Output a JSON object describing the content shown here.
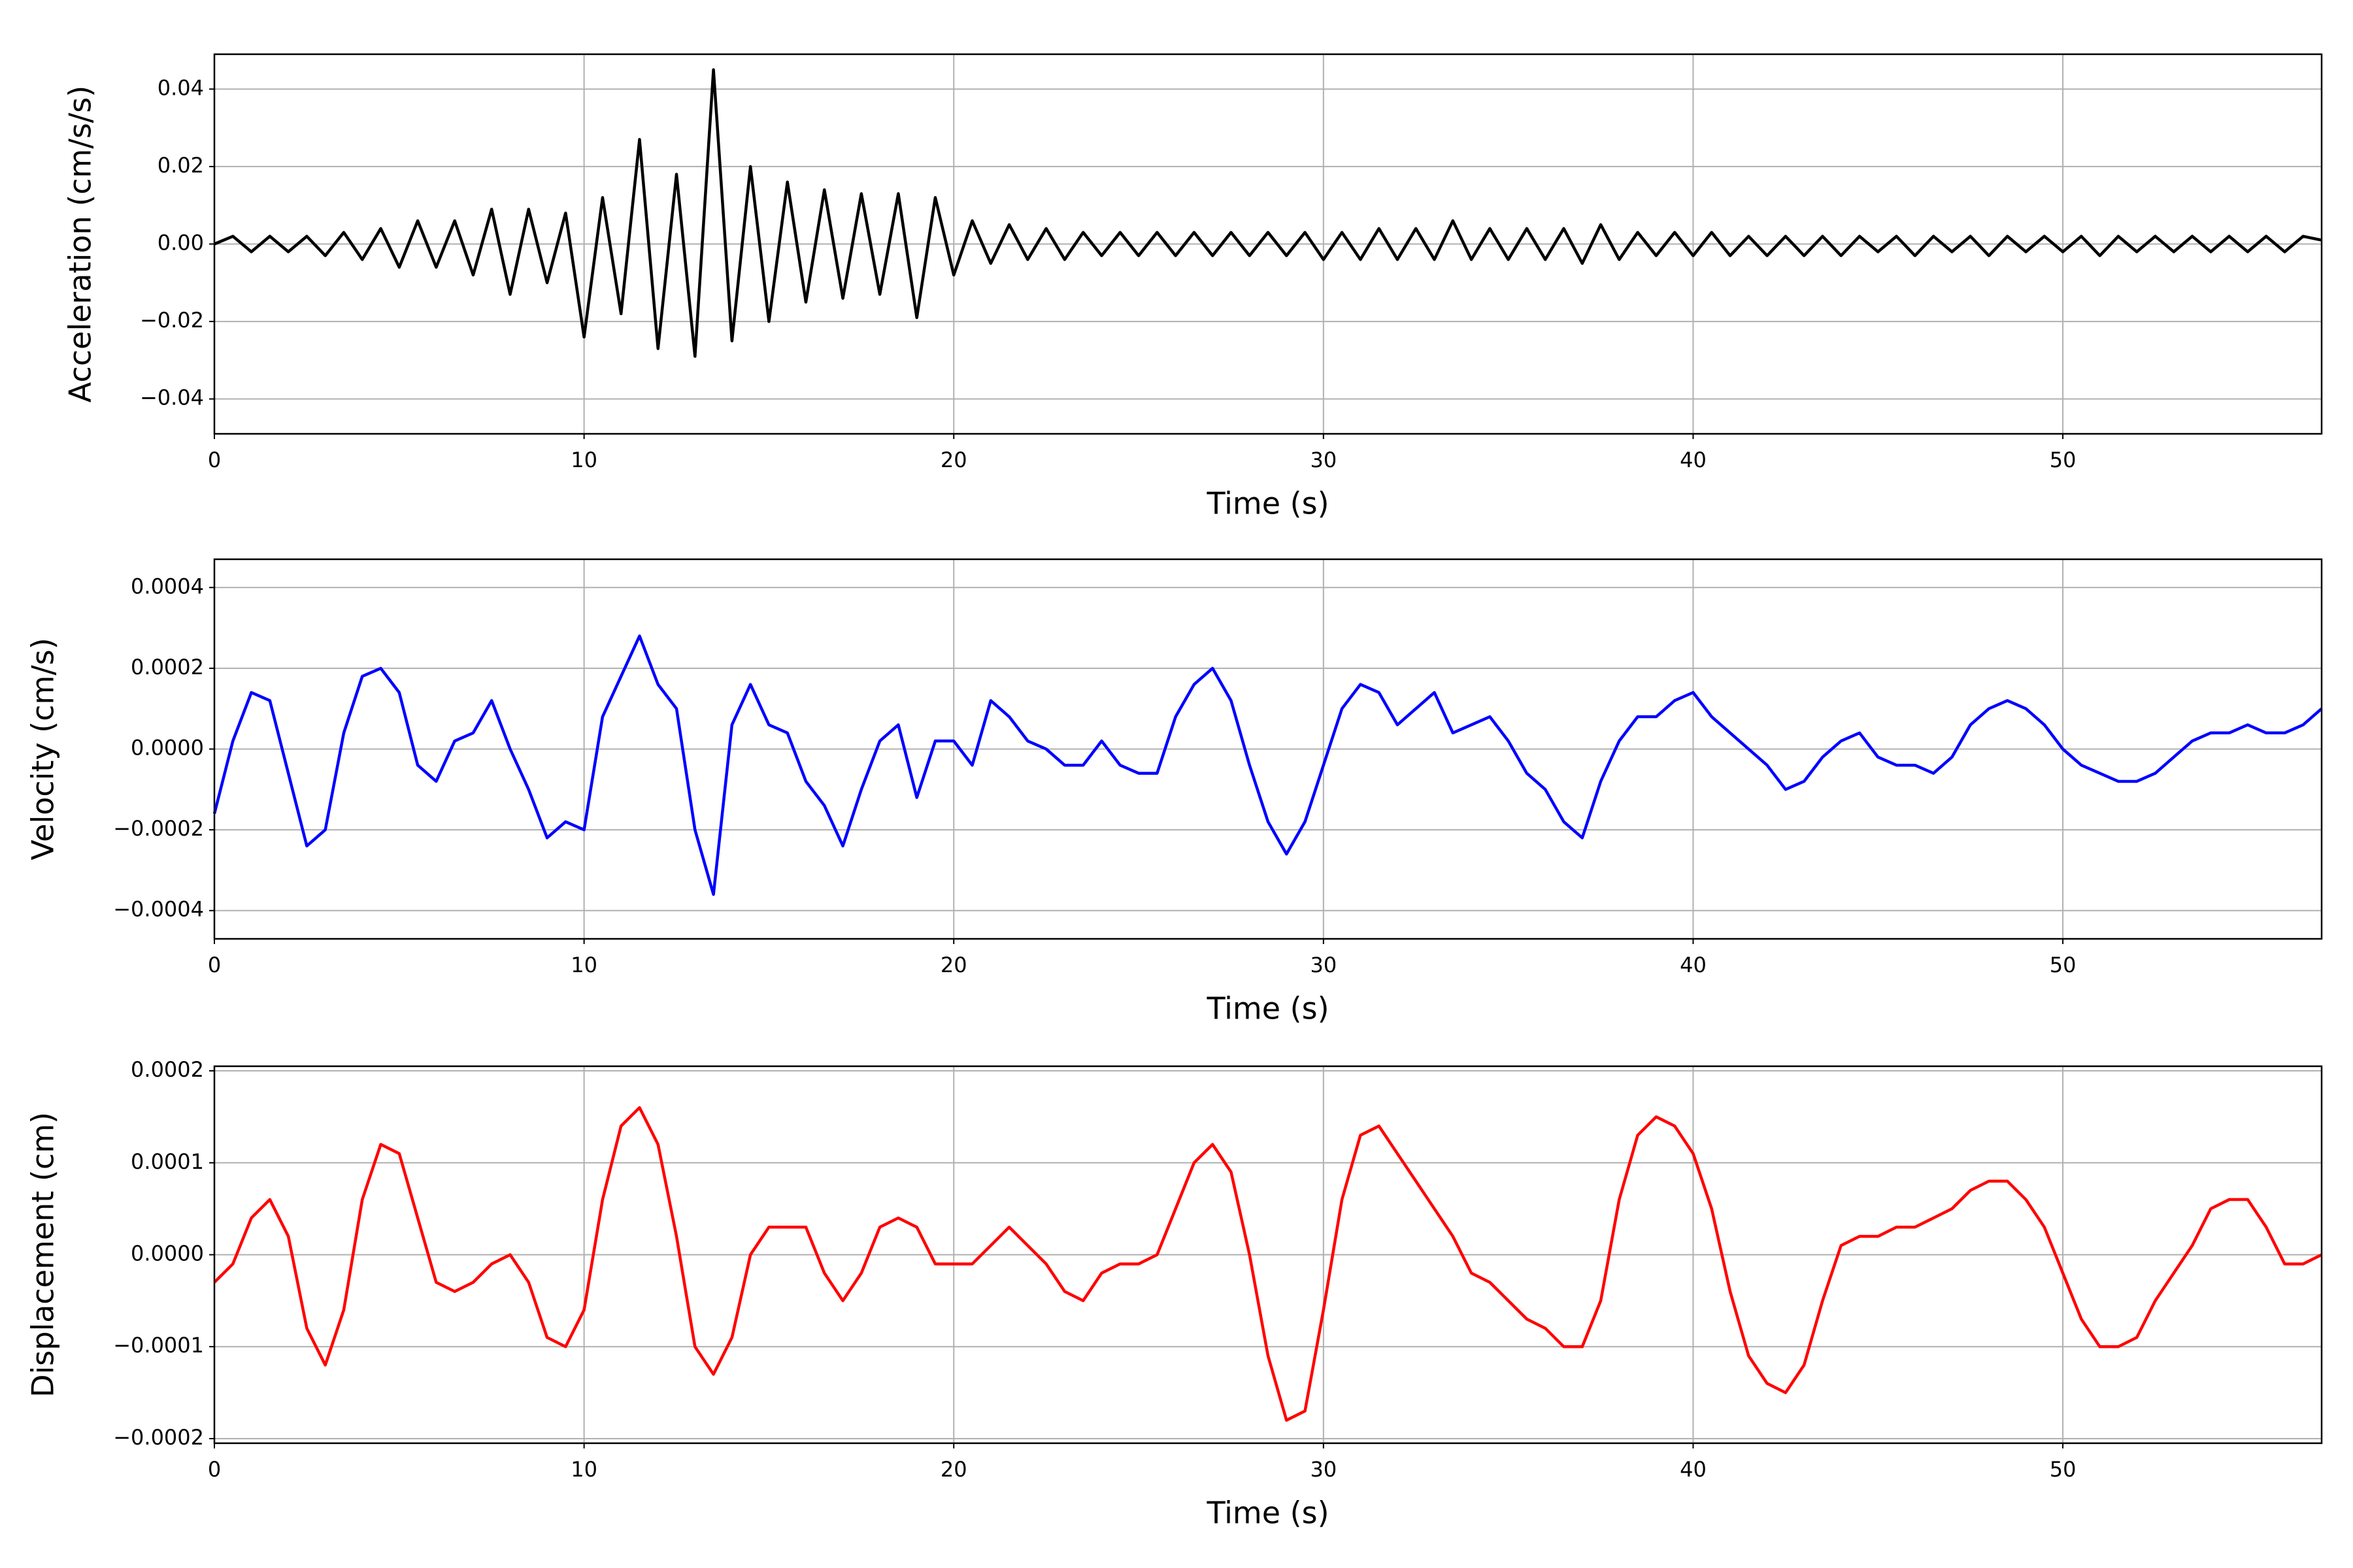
{
  "chart_data": [
    {
      "type": "line",
      "ylabel": "Acceleration (cm/s/s)",
      "xlabel": "Time (s)",
      "color": "#000000",
      "grid": true,
      "xlim": [
        0,
        57
      ],
      "xticks": [
        0,
        10,
        20,
        30,
        40,
        50
      ],
      "ylim": [
        -0.049,
        0.049
      ],
      "yticks": [
        {
          "value": -0.04,
          "label": "−0.04"
        },
        {
          "value": -0.02,
          "label": "−0.02"
        },
        {
          "value": 0,
          "label": "0.00"
        },
        0.02,
        0.04
      ],
      "x": [
        0,
        0.5,
        1,
        1.5,
        2,
        2.5,
        3,
        3.5,
        4,
        4.5,
        5,
        5.5,
        6,
        6.5,
        7,
        7.5,
        8,
        8.5,
        9,
        9.5,
        10,
        10.5,
        11,
        11.5,
        12,
        12.5,
        13,
        13.5,
        14,
        14.5,
        15,
        15.5,
        16,
        16.5,
        17,
        17.5,
        18,
        18.5,
        19,
        19.5,
        20,
        20.5,
        21,
        21.5,
        22,
        22.5,
        23,
        23.5,
        24,
        24.5,
        25,
        25.5,
        26,
        26.5,
        27,
        27.5,
        28,
        28.5,
        29,
        29.5,
        30,
        30.5,
        31,
        31.5,
        32,
        32.5,
        33,
        33.5,
        34,
        34.5,
        35,
        35.5,
        36,
        36.5,
        37,
        37.5,
        38,
        38.5,
        39,
        39.5,
        40,
        40.5,
        41,
        41.5,
        42,
        42.5,
        43,
        43.5,
        44,
        44.5,
        45,
        45.5,
        46,
        46.5,
        47,
        47.5,
        48,
        48.5,
        49,
        49.5,
        50,
        50.5,
        51,
        51.5,
        52,
        52.5,
        53,
        53.5,
        54,
        54.5,
        55,
        55.5,
        56,
        56.5,
        57
      ],
      "values": [
        0,
        0.002,
        -0.002,
        0.002,
        -0.002,
        0.002,
        -0.003,
        0.003,
        -0.004,
        0.004,
        -0.006,
        0.006,
        -0.006,
        0.006,
        -0.008,
        0.009,
        -0.013,
        0.009,
        -0.01,
        0.008,
        -0.024,
        0.012,
        -0.018,
        0.027,
        -0.027,
        0.018,
        -0.029,
        0.045,
        -0.025,
        0.02,
        -0.02,
        0.016,
        -0.015,
        0.014,
        -0.014,
        0.013,
        -0.013,
        0.013,
        -0.019,
        0.012,
        -0.008,
        0.006,
        -0.005,
        0.005,
        -0.004,
        0.004,
        -0.004,
        0.003,
        -0.003,
        0.003,
        -0.003,
        0.003,
        -0.003,
        0.003,
        -0.003,
        0.003,
        -0.003,
        0.003,
        -0.003,
        0.003,
        -0.004,
        0.003,
        -0.004,
        0.004,
        -0.004,
        0.004,
        -0.004,
        0.006,
        -0.004,
        0.004,
        -0.004,
        0.004,
        -0.004,
        0.004,
        -0.005,
        0.005,
        -0.004,
        0.003,
        -0.003,
        0.003,
        -0.003,
        0.003,
        -0.003,
        0.002,
        -0.003,
        0.002,
        -0.003,
        0.002,
        -0.003,
        0.002,
        -0.002,
        0.002,
        -0.003,
        0.002,
        -0.002,
        0.002,
        -0.003,
        0.002,
        -0.002,
        0.002,
        -0.002,
        0.002,
        -0.003,
        0.002,
        -0.002,
        0.002,
        -0.002,
        0.002,
        -0.002,
        0.002,
        -0.002,
        0.002,
        -0.002,
        0.002,
        0.001
      ]
    },
    {
      "type": "line",
      "ylabel": "Velocity (cm/s)",
      "xlabel": "Time (s)",
      "color": "#0000ff",
      "grid": true,
      "xlim": [
        0,
        57
      ],
      "xticks": [
        0,
        10,
        20,
        30,
        40,
        50
      ],
      "ylim": [
        -0.00047,
        0.00047
      ],
      "yticks": [
        {
          "value": -0.0004,
          "label": "−0.0004"
        },
        {
          "value": -0.0002,
          "label": "−0.0002"
        },
        {
          "value": 0,
          "label": "0.0000"
        },
        0.0002,
        0.0004
      ],
      "x": [
        0,
        0.5,
        1,
        1.5,
        2,
        2.5,
        3,
        3.5,
        4,
        4.5,
        5,
        5.5,
        6,
        6.5,
        7,
        7.5,
        8,
        8.5,
        9,
        9.5,
        10,
        10.5,
        11,
        11.5,
        12,
        12.5,
        13,
        13.5,
        14,
        14.5,
        15,
        15.5,
        16,
        16.5,
        17,
        17.5,
        18,
        18.5,
        19,
        19.5,
        20,
        20.5,
        21,
        21.5,
        22,
        22.5,
        23,
        23.5,
        24,
        24.5,
        25,
        25.5,
        26,
        26.5,
        27,
        27.5,
        28,
        28.5,
        29,
        29.5,
        30,
        30.5,
        31,
        31.5,
        32,
        32.5,
        33,
        33.5,
        34,
        34.5,
        35,
        35.5,
        36,
        36.5,
        37,
        37.5,
        38,
        38.5,
        39,
        39.5,
        40,
        40.5,
        41,
        41.5,
        42,
        42.5,
        43,
        43.5,
        44,
        44.5,
        45,
        45.5,
        46,
        46.5,
        47,
        47.5,
        48,
        48.5,
        49,
        49.5,
        50,
        50.5,
        51,
        51.5,
        52,
        52.5,
        53,
        53.5,
        54,
        54.5,
        55,
        55.5,
        56,
        56.5,
        57
      ],
      "values": [
        -0.00016,
        2e-05,
        0.00014,
        0.00012,
        -6e-05,
        -0.00024,
        -0.0002,
        4e-05,
        0.00018,
        0.0002,
        0.00014,
        -4e-05,
        -8e-05,
        2e-05,
        4e-05,
        0.00012,
        0,
        -0.0001,
        -0.00022,
        -0.00018,
        -0.0002,
        8e-05,
        0.00018,
        0.00028,
        0.00016,
        0.0001,
        -0.0002,
        -0.00036,
        6e-05,
        0.00016,
        6e-05,
        4e-05,
        -8e-05,
        -0.00014,
        -0.00024,
        -0.0001,
        2e-05,
        6e-05,
        -0.00012,
        2e-05,
        2e-05,
        -4e-05,
        0.00012,
        8e-05,
        2e-05,
        0,
        -4e-05,
        -4e-05,
        2e-05,
        -4e-05,
        -6e-05,
        -6e-05,
        8e-05,
        0.00016,
        0.0002,
        0.00012,
        -4e-05,
        -0.00018,
        -0.00026,
        -0.00018,
        -4e-05,
        0.0001,
        0.00016,
        0.00014,
        6e-05,
        0.0001,
        0.00014,
        4e-05,
        6e-05,
        8e-05,
        2e-05,
        -6e-05,
        -0.0001,
        -0.00018,
        -0.00022,
        -8e-05,
        2e-05,
        8e-05,
        8e-05,
        0.00012,
        0.00014,
        8e-05,
        4e-05,
        0,
        -4e-05,
        -0.0001,
        -8e-05,
        -2e-05,
        2e-05,
        4e-05,
        -2e-05,
        -4e-05,
        -4e-05,
        -6e-05,
        -2e-05,
        6e-05,
        0.0001,
        0.00012,
        0.0001,
        6e-05,
        0,
        -4e-05,
        -6e-05,
        -8e-05,
        -8e-05,
        -6e-05,
        -2e-05,
        2e-05,
        4e-05,
        4e-05,
        6e-05,
        4e-05,
        4e-05,
        6e-05,
        0.0001
      ]
    },
    {
      "type": "line",
      "ylabel": "Displacement (cm)",
      "xlabel": "Time (s)",
      "color": "#ff0000",
      "grid": true,
      "xlim": [
        0,
        57
      ],
      "xticks": [
        0,
        10,
        20,
        30,
        40,
        50
      ],
      "ylim": [
        -0.000205,
        0.000205
      ],
      "yticks": [
        {
          "value": -0.0002,
          "label": "−0.0002"
        },
        {
          "value": -0.0001,
          "label": "−0.0001"
        },
        {
          "value": 0,
          "label": "0.0000"
        },
        0.0001,
        0.0002
      ],
      "x": [
        0,
        0.5,
        1,
        1.5,
        2,
        2.5,
        3,
        3.5,
        4,
        4.5,
        5,
        5.5,
        6,
        6.5,
        7,
        7.5,
        8,
        8.5,
        9,
        9.5,
        10,
        10.5,
        11,
        11.5,
        12,
        12.5,
        13,
        13.5,
        14,
        14.5,
        15,
        15.5,
        16,
        16.5,
        17,
        17.5,
        18,
        18.5,
        19,
        19.5,
        20,
        20.5,
        21,
        21.5,
        22,
        22.5,
        23,
        23.5,
        24,
        24.5,
        25,
        25.5,
        26,
        26.5,
        27,
        27.5,
        28,
        28.5,
        29,
        29.5,
        30,
        30.5,
        31,
        31.5,
        32,
        32.5,
        33,
        33.5,
        34,
        34.5,
        35,
        35.5,
        36,
        36.5,
        37,
        37.5,
        38,
        38.5,
        39,
        39.5,
        40,
        40.5,
        41,
        41.5,
        42,
        42.5,
        43,
        43.5,
        44,
        44.5,
        45,
        45.5,
        46,
        46.5,
        47,
        47.5,
        48,
        48.5,
        49,
        49.5,
        50,
        50.5,
        51,
        51.5,
        52,
        52.5,
        53,
        53.5,
        54,
        54.5,
        55,
        55.5,
        56,
        56.5,
        57
      ],
      "values": [
        -3e-05,
        -1e-05,
        4e-05,
        6e-05,
        2e-05,
        -8e-05,
        -0.00012,
        -6e-05,
        6e-05,
        0.00012,
        0.00011,
        4e-05,
        -3e-05,
        -4e-05,
        -3e-05,
        -1e-05,
        0,
        -3e-05,
        -9e-05,
        -0.0001,
        -6e-05,
        6e-05,
        0.00014,
        0.00016,
        0.00012,
        2e-05,
        -0.0001,
        -0.00013,
        -9e-05,
        0,
        3e-05,
        3e-05,
        3e-05,
        -2e-05,
        -5e-05,
        -2e-05,
        3e-05,
        4e-05,
        3e-05,
        -1e-05,
        -1e-05,
        -1e-05,
        1e-05,
        3e-05,
        1e-05,
        -1e-05,
        -4e-05,
        -5e-05,
        -2e-05,
        -1e-05,
        -1e-05,
        0,
        5e-05,
        0.0001,
        0.00012,
        9e-05,
        0,
        -0.00011,
        -0.00018,
        -0.00017,
        -6e-05,
        6e-05,
        0.00013,
        0.00014,
        0.00011,
        8e-05,
        5e-05,
        2e-05,
        -2e-05,
        -3e-05,
        -5e-05,
        -7e-05,
        -8e-05,
        -0.0001,
        -0.0001,
        -5e-05,
        6e-05,
        0.00013,
        0.00015,
        0.00014,
        0.00011,
        5e-05,
        -4e-05,
        -0.00011,
        -0.00014,
        -0.00015,
        -0.00012,
        -5e-05,
        1e-05,
        2e-05,
        2e-05,
        3e-05,
        3e-05,
        4e-05,
        5e-05,
        7e-05,
        8e-05,
        8e-05,
        6e-05,
        3e-05,
        -2e-05,
        -7e-05,
        -0.0001,
        -0.0001,
        -9e-05,
        -5e-05,
        -2e-05,
        1e-05,
        5e-05,
        6e-05,
        6e-05,
        3e-05,
        -1e-05,
        -1e-05,
        0
      ]
    }
  ]
}
